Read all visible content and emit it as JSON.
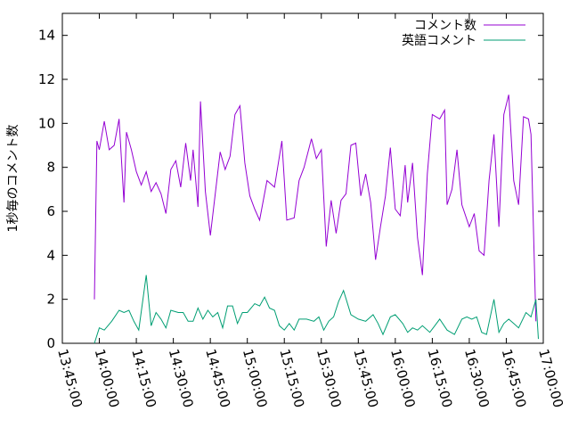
{
  "chart_data": {
    "type": "line",
    "ylabel": "1秒毎のコメント数",
    "ylim": [
      0,
      15
    ],
    "yticks": [
      0,
      2,
      4,
      6,
      8,
      10,
      12,
      14
    ],
    "xlim": [
      "13:45:00",
      "17:00:00"
    ],
    "xticks": [
      "13:45:00",
      "14:00:00",
      "14:15:00",
      "14:30:00",
      "14:45:00",
      "15:00:00",
      "15:15:00",
      "15:30:00",
      "15:45:00",
      "16:00:00",
      "16:15:00",
      "16:30:00",
      "16:45:00",
      "17:00:00"
    ],
    "grid": false,
    "legend_position": "top-right",
    "series": [
      {
        "name": "コメント数",
        "color": "#9400d3",
        "x": [
          "13:58:00",
          "13:59:00",
          "14:00:00",
          "14:02:00",
          "14:04:00",
          "14:06:00",
          "14:08:00",
          "14:10:00",
          "14:11:00",
          "14:13:00",
          "14:15:00",
          "14:17:00",
          "14:19:00",
          "14:21:00",
          "14:23:00",
          "14:25:00",
          "14:27:00",
          "14:29:00",
          "14:31:00",
          "14:33:00",
          "14:35:00",
          "14:37:00",
          "14:38:00",
          "14:40:00",
          "14:41:00",
          "14:43:00",
          "14:45:00",
          "14:47:00",
          "14:49:00",
          "14:51:00",
          "14:53:00",
          "14:55:00",
          "14:57:00",
          "14:59:00",
          "15:01:00",
          "15:03:00",
          "15:05:00",
          "15:08:00",
          "15:11:00",
          "15:14:00",
          "15:16:00",
          "15:19:00",
          "15:21:00",
          "15:23:00",
          "15:26:00",
          "15:28:00",
          "15:30:00",
          "15:32:00",
          "15:34:00",
          "15:36:00",
          "15:38:00",
          "15:40:00",
          "15:42:00",
          "15:44:00",
          "15:46:00",
          "15:48:00",
          "15:50:00",
          "15:52:00",
          "15:54:00",
          "15:56:00",
          "15:58:00",
          "16:00:00",
          "16:02:00",
          "16:04:00",
          "16:05:00",
          "16:07:00",
          "16:09:00",
          "16:11:00",
          "16:13:00",
          "16:15:00",
          "16:18:00",
          "16:20:00",
          "16:21:00",
          "16:23:00",
          "16:25:00",
          "16:27:00",
          "16:30:00",
          "16:32:00",
          "16:34:00",
          "16:36:00",
          "16:38:00",
          "16:40:00",
          "16:42:00",
          "16:44:00",
          "16:46:00",
          "16:48:00",
          "16:50:00",
          "16:52:00",
          "16:54:00",
          "16:55:00",
          "16:56:00",
          "16:57:00"
        ],
        "values": [
          2.0,
          9.2,
          8.8,
          10.1,
          8.8,
          9.0,
          10.2,
          6.4,
          9.6,
          8.8,
          7.8,
          7.2,
          7.8,
          6.9,
          7.3,
          6.8,
          5.9,
          7.9,
          8.3,
          7.1,
          9.1,
          7.4,
          8.8,
          6.2,
          11.0,
          6.9,
          4.9,
          6.8,
          8.7,
          7.9,
          8.5,
          10.4,
          10.8,
          8.2,
          6.7,
          6.1,
          5.6,
          7.4,
          7.1,
          9.2,
          5.6,
          5.7,
          7.4,
          8.0,
          9.3,
          8.4,
          8.8,
          4.4,
          6.5,
          5.0,
          6.5,
          6.8,
          9.0,
          9.1,
          6.7,
          7.7,
          6.4,
          3.8,
          5.3,
          6.7,
          8.9,
          6.1,
          5.8,
          8.1,
          6.4,
          8.2,
          4.8,
          3.1,
          7.7,
          10.4,
          10.2,
          10.6,
          6.3,
          7.0,
          8.8,
          6.3,
          5.3,
          5.9,
          4.2,
          4.0,
          7.4,
          9.5,
          5.3,
          10.4,
          11.3,
          7.4,
          6.3,
          10.3,
          10.2,
          9.5,
          5.3,
          1.0
        ]
      },
      {
        "name": "英語コメント",
        "color": "#009e73",
        "x": [
          "13:58:00",
          "14:00:00",
          "14:02:00",
          "14:05:00",
          "14:08:00",
          "14:10:00",
          "14:12:00",
          "14:14:00",
          "14:16:00",
          "14:19:00",
          "14:21:00",
          "14:23:00",
          "14:25:00",
          "14:27:00",
          "14:29:00",
          "14:32:00",
          "14:34:00",
          "14:36:00",
          "14:38:00",
          "14:40:00",
          "14:42:00",
          "14:44:00",
          "14:46:00",
          "14:48:00",
          "14:50:00",
          "14:52:00",
          "14:54:00",
          "14:56:00",
          "14:58:00",
          "15:00:00",
          "15:03:00",
          "15:05:00",
          "15:07:00",
          "15:09:00",
          "15:11:00",
          "15:13:00",
          "15:15:00",
          "15:17:00",
          "15:19:00",
          "15:21:00",
          "15:24:00",
          "15:27:00",
          "15:29:00",
          "15:31:00",
          "15:33:00",
          "15:35:00",
          "15:37:00",
          "15:39:00",
          "15:42:00",
          "15:45:00",
          "15:48:00",
          "15:51:00",
          "15:53:00",
          "15:55:00",
          "15:58:00",
          "16:00:00",
          "16:03:00",
          "16:05:00",
          "16:07:00",
          "16:09:00",
          "16:11:00",
          "16:14:00",
          "16:16:00",
          "16:18:00",
          "16:21:00",
          "16:24:00",
          "16:27:00",
          "16:29:00",
          "16:31:00",
          "16:33:00",
          "16:35:00",
          "16:37:00",
          "16:40:00",
          "16:42:00",
          "16:44:00",
          "16:46:00",
          "16:48:00",
          "16:50:00",
          "16:53:00",
          "16:55:00",
          "16:57:00",
          "16:58:00"
        ],
        "values": [
          0.0,
          0.7,
          0.6,
          1.0,
          1.5,
          1.4,
          1.5,
          1.0,
          0.6,
          3.1,
          0.8,
          1.4,
          1.1,
          0.7,
          1.5,
          1.4,
          1.4,
          1.0,
          1.0,
          1.6,
          1.1,
          1.5,
          1.2,
          1.4,
          0.7,
          1.7,
          1.7,
          0.9,
          1.4,
          1.4,
          1.8,
          1.7,
          2.1,
          1.6,
          1.5,
          0.8,
          0.6,
          0.9,
          0.6,
          1.1,
          1.1,
          1.0,
          1.2,
          0.6,
          1.0,
          1.2,
          1.9,
          2.4,
          1.3,
          1.1,
          1.0,
          1.3,
          0.9,
          0.4,
          1.2,
          1.3,
          0.9,
          0.5,
          0.7,
          0.6,
          0.8,
          0.5,
          0.8,
          1.1,
          0.6,
          0.4,
          1.1,
          1.2,
          1.1,
          1.2,
          0.5,
          0.4,
          2.0,
          0.5,
          0.9,
          1.1,
          0.9,
          0.7,
          1.4,
          1.2,
          2.0,
          0.2
        ]
      }
    ]
  }
}
